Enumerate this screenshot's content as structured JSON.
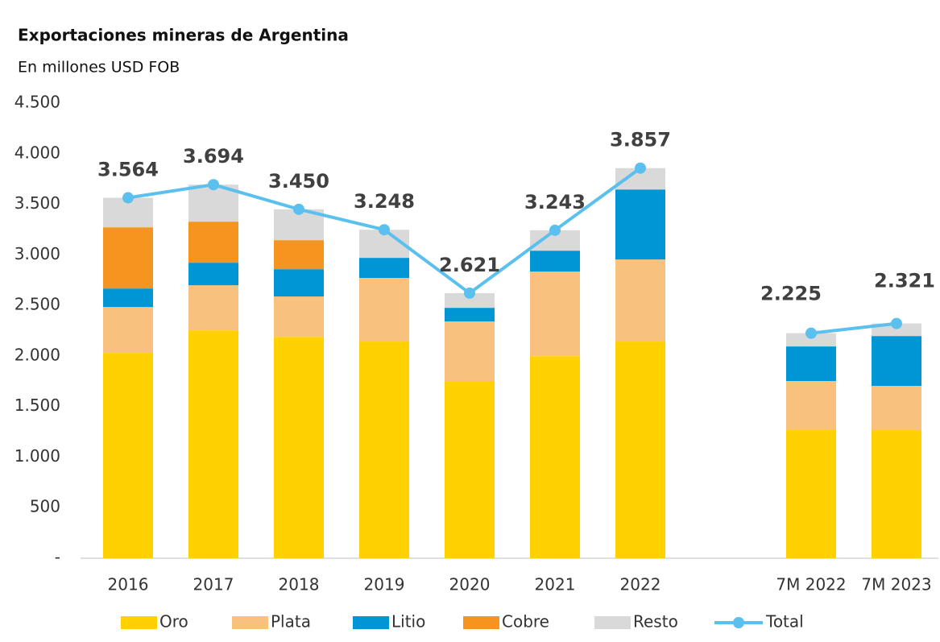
{
  "chart_data": {
    "type": "bar",
    "stacked": true,
    "title": "Exportaciones mineras de Argentina",
    "subtitle": "En millones USD FOB",
    "categories": [
      "2016",
      "2017",
      "2018",
      "2019",
      "2020",
      "2021",
      "2022",
      null,
      "7M 2022",
      "7M 2023"
    ],
    "ylim": [
      0,
      4500
    ],
    "yticks": [
      {
        "value": 0,
        "label": "-"
      },
      500,
      {
        "value": 1000,
        "label": "1.000"
      },
      {
        "value": 1500,
        "label": "1.500"
      },
      {
        "value": 2000,
        "label": "2.000"
      },
      {
        "value": 2500,
        "label": "2.500"
      },
      {
        "value": 3000,
        "label": "3.000"
      },
      {
        "value": 3500,
        "label": "3.500"
      },
      {
        "value": 4000,
        "label": "4.000"
      },
      {
        "value": 4500,
        "label": "4.500"
      }
    ],
    "grid": false,
    "legend": "bottom",
    "series": [
      {
        "name": "Oro",
        "color": "#ffd100",
        "values": [
          2030,
          2253,
          2189,
          2142,
          1752,
          1998,
          2142,
          null,
          1266,
          1266
        ]
      },
      {
        "name": "Plata",
        "color": "#f8c27e",
        "values": [
          454,
          446,
          399,
          629,
          589,
          836,
          812,
          null,
          486,
          438
        ]
      },
      {
        "name": "Litio",
        "color": "#0095d5",
        "values": [
          183,
          223,
          270,
          199,
          135,
          207,
          692,
          null,
          342,
          493
        ]
      },
      {
        "name": "Cobre",
        "color": "#f5951f",
        "values": [
          605,
          406,
          287,
          0,
          0,
          0,
          0,
          null,
          0,
          0
        ]
      },
      {
        "name": "Resto",
        "color": "#d9d9d9",
        "values": [
          292,
          366,
          305,
          278,
          145,
          202,
          211,
          null,
          131,
          124
        ]
      },
      {
        "name": "Total",
        "type": "line",
        "color": "#5bc0ee",
        "values": [
          3564,
          3694,
          3450,
          3248,
          2621,
          3243,
          3857,
          null,
          2225,
          2321
        ],
        "value_labels": [
          "3.564",
          "3.694",
          "3.450",
          "3.248",
          "2.621",
          "3.243",
          "3.857",
          null,
          "2.225",
          "2.321"
        ]
      }
    ]
  }
}
